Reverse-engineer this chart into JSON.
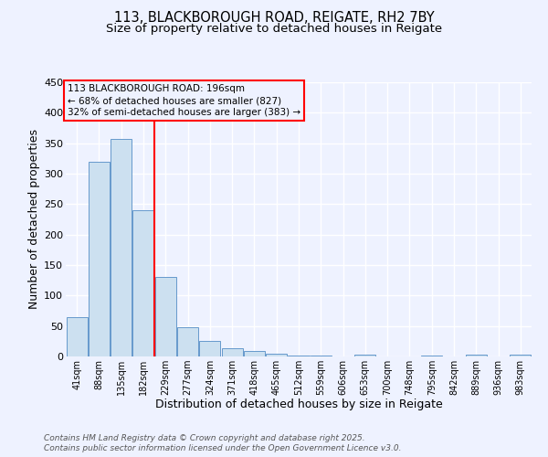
{
  "title1": "113, BLACKBOROUGH ROAD, REIGATE, RH2 7BY",
  "title2": "Size of property relative to detached houses in Reigate",
  "xlabel": "Distribution of detached houses by size in Reigate",
  "ylabel": "Number of detached properties",
  "categories": [
    "41sqm",
    "88sqm",
    "135sqm",
    "182sqm",
    "229sqm",
    "277sqm",
    "324sqm",
    "371sqm",
    "418sqm",
    "465sqm",
    "512sqm",
    "559sqm",
    "606sqm",
    "653sqm",
    "700sqm",
    "748sqm",
    "795sqm",
    "842sqm",
    "889sqm",
    "936sqm",
    "983sqm"
  ],
  "values": [
    65,
    320,
    357,
    240,
    130,
    48,
    25,
    14,
    9,
    4,
    2,
    1,
    0,
    3,
    0,
    0,
    1,
    0,
    3,
    0,
    3
  ],
  "bar_color": "#cce0f0",
  "bar_edge_color": "#6699cc",
  "red_line_x": 3.5,
  "annotation_text": "113 BLACKBOROUGH ROAD: 196sqm\n← 68% of detached houses are smaller (827)\n32% of semi-detached houses are larger (383) →",
  "footer1": "Contains HM Land Registry data © Crown copyright and database right 2025.",
  "footer2": "Contains public sector information licensed under the Open Government Licence v3.0.",
  "ylim": [
    0,
    450
  ],
  "bg_color": "#eef2ff",
  "grid_color": "#ffffff",
  "title_fontsize": 10.5,
  "subtitle_fontsize": 9.5,
  "axis_label_fontsize": 9,
  "tick_fontsize": 7,
  "annotation_fontsize": 7.5,
  "footer_fontsize": 6.5
}
